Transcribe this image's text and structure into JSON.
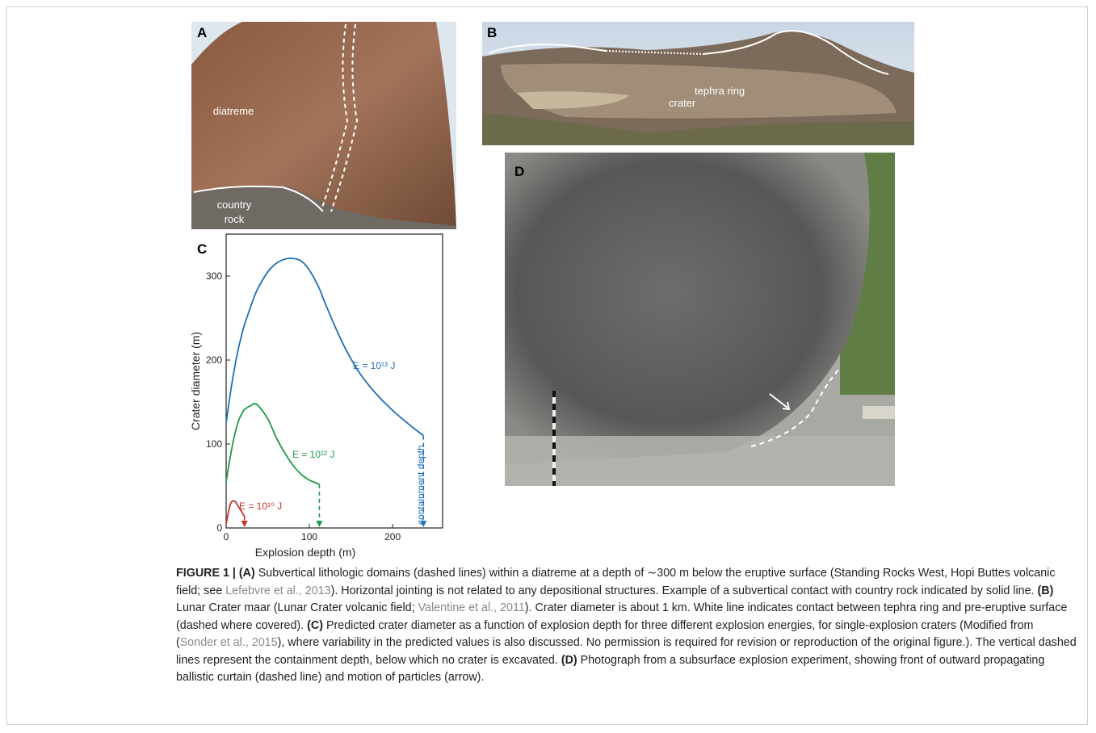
{
  "panels": [
    {
      "label": "A",
      "annotations": [
        "diatreme",
        "country",
        "rock"
      ]
    },
    {
      "label": "B",
      "annotations": [
        "tephra ring",
        "crater"
      ]
    },
    {
      "label": "D"
    }
  ],
  "chart_data": {
    "type": "line",
    "panel_label": "C",
    "x_label": "Explosion depth (m)",
    "y_label": "Crater diameter (m)",
    "annotation": "containment depth",
    "x": [
      0,
      5,
      10,
      15,
      20,
      22,
      30,
      37,
      50,
      60,
      70,
      80,
      90,
      100,
      112,
      120,
      140,
      160,
      180,
      200,
      220,
      237
    ],
    "series": [
      {
        "name": "E = 10¹³ J",
        "color": "#1f6fb7",
        "values": [
          125,
          160,
          190,
          215,
          235,
          242,
          265,
          283,
          305,
          315,
          320,
          321,
          318,
          307,
          285,
          265,
          220,
          185,
          160,
          140,
          123,
          110
        ]
      },
      {
        "name": "E = 10¹² J",
        "color": "#1f9a48",
        "values": [
          55,
          85,
          110,
          128,
          138,
          141,
          146,
          147,
          130,
          108,
          90,
          75,
          64,
          57,
          52,
          null,
          null,
          null,
          null,
          null,
          null,
          null
        ]
      },
      {
        "name": "E = 10¹⁰ J",
        "color": "#c8302c",
        "values": [
          5,
          28,
          32,
          25,
          17,
          14,
          null,
          null,
          null,
          null,
          null,
          null,
          null,
          null,
          null,
          null,
          null,
          null,
          null,
          null,
          null,
          null
        ]
      }
    ],
    "xlim": [
      0,
      260
    ],
    "ylim": [
      0,
      350
    ],
    "xticks": [
      0,
      100,
      200
    ],
    "yticks": [
      0,
      100,
      200,
      300
    ]
  },
  "caption": [
    "FIGURE 1 | (A)",
    " Subvertical lithologic domains (dashed lines) within a diatreme at a depth of ∼300 m below the eruptive surface (Standing Rocks West, Hopi Buttes volcanic field; see ",
    "Lefebvre et al., 2013",
    "). Horizontal jointing is not related to any depositional structures. Example of a subvertical contact with country rock indicated by solid line. ",
    "(B)",
    " Lunar Crater maar (Lunar Crater volcanic field; ",
    "Valentine et al., 2011",
    "). Crater diameter is about 1 km. White line indicates contact between tephra ring and pre-eruptive surface (dashed where covered). ",
    "(C)",
    " Predicted crater diameter as a function of explosion depth for three different explosion energies, for single-explosion craters (Modified from (",
    "Sonder et al., 2015",
    "), where variability in the predicted values is also discussed. No permission is required for revision or reproduction of the original figure.). The vertical dashed lines represent the containment depth, below which no crater is excavated. ",
    "(D)",
    " Photograph from a subsurface explosion experiment, showing front of outward propagating ballistic curtain (dashed line) and motion of particles (arrow)."
  ]
}
